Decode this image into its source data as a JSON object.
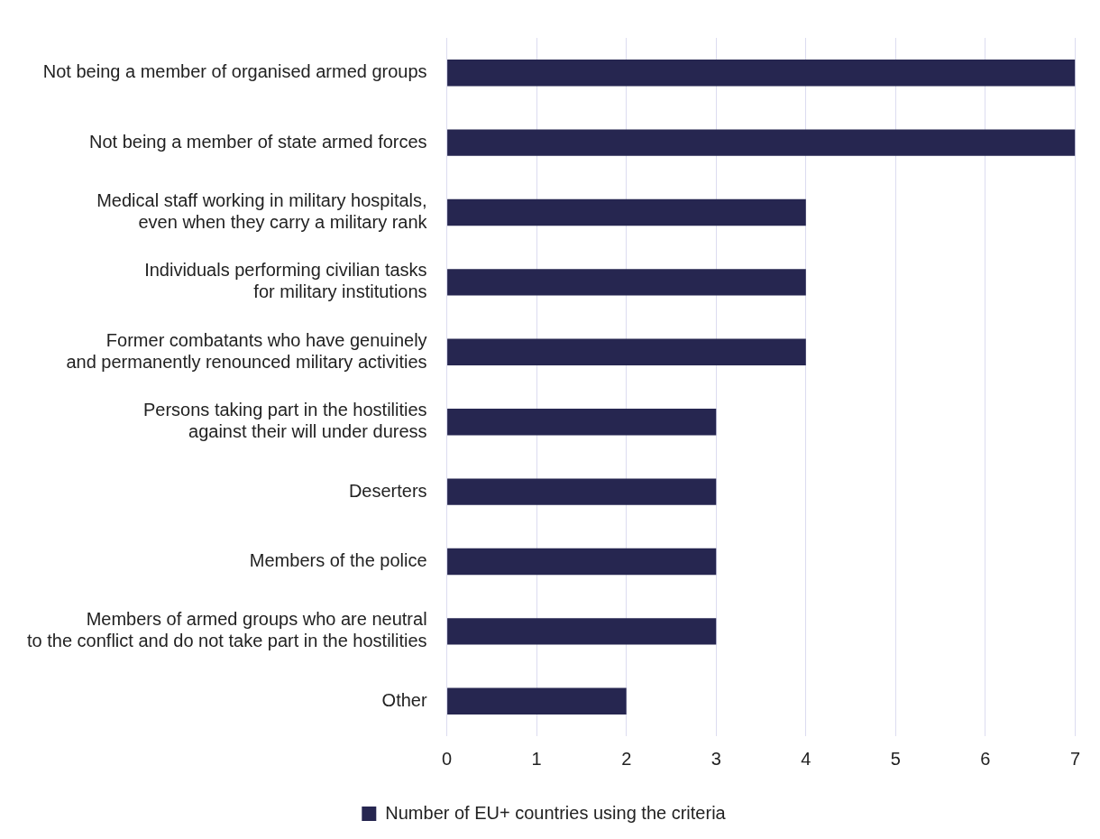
{
  "chart_data": {
    "type": "bar",
    "orientation": "horizontal",
    "categories": [
      "Not being a member of organised armed groups",
      "Not being a member of state armed forces",
      "Medical staff working in military hospitals,\neven when they carry a military rank",
      "Individuals performing civilian tasks\nfor military institutions",
      "Former combatants who have genuinely\nand permanently renounced military activities",
      "Persons taking part in the hostilities\nagainst their will under duress",
      "Deserters",
      "Members of the police",
      "Members of armed groups who are neutral\nto the conflict and do not take part in the hostilities",
      "Other"
    ],
    "series": [
      {
        "name": "Number of EU+ countries using the criteria",
        "color": "#262650",
        "values": [
          7,
          7,
          4,
          4,
          4,
          3,
          3,
          3,
          3,
          2
        ]
      }
    ],
    "xlim": [
      0,
      7
    ],
    "xticks": [
      0,
      1,
      2,
      3,
      4,
      5,
      6,
      7
    ],
    "grid": "x",
    "legend": "bottom"
  }
}
